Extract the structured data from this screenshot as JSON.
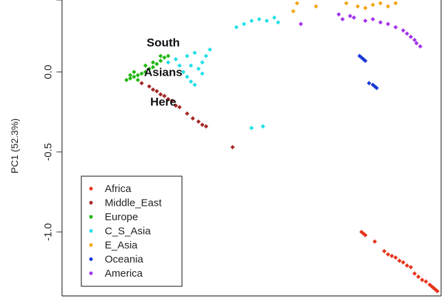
{
  "chart_data": {
    "type": "scatter",
    "title": "",
    "xlabel": "",
    "ylabel": "PC1 (52.3%)",
    "ylim": [
      -1.4,
      0.45
    ],
    "yticks": [
      {
        "value": 0.0,
        "label": "0.0"
      },
      {
        "value": -0.5,
        "label": "-0.5"
      },
      {
        "value": -1.0,
        "label": "-1.0"
      }
    ],
    "xlim": [
      0,
      1
    ],
    "annotations": [
      {
        "text": "South",
        "x": 0.267,
        "y": 0.16
      },
      {
        "text": "Asians",
        "x": 0.267,
        "y": -0.025
      },
      {
        "text": "Here",
        "x": 0.267,
        "y": -0.21
      }
    ],
    "legend_position": "bottom-left",
    "series": [
      {
        "name": "Africa",
        "color": "#e8341c",
        "points": [
          [
            0.79,
            -1.0
          ],
          [
            0.795,
            -1.01
          ],
          [
            0.8,
            -1.02
          ],
          [
            0.825,
            -1.06
          ],
          [
            0.85,
            -1.12
          ],
          [
            0.86,
            -1.14
          ],
          [
            0.87,
            -1.15
          ],
          [
            0.88,
            -1.16
          ],
          [
            0.89,
            -1.18
          ],
          [
            0.9,
            -1.19
          ],
          [
            0.91,
            -1.21
          ],
          [
            0.92,
            -1.22
          ],
          [
            0.93,
            -1.26
          ],
          [
            0.94,
            -1.28
          ],
          [
            0.95,
            -1.3
          ],
          [
            0.96,
            -1.31
          ],
          [
            0.97,
            -1.33
          ],
          [
            0.975,
            -1.34
          ],
          [
            0.98,
            -1.35
          ],
          [
            0.985,
            -1.36
          ],
          [
            0.99,
            -1.37
          ]
        ]
      },
      {
        "name": "Middle_East",
        "color": "#a52a2a",
        "points": [
          [
            0.21,
            -0.07
          ],
          [
            0.23,
            -0.09
          ],
          [
            0.25,
            -0.12
          ],
          [
            0.27,
            -0.15
          ],
          [
            0.29,
            -0.18
          ],
          [
            0.31,
            -0.22
          ],
          [
            0.33,
            -0.26
          ],
          [
            0.345,
            -0.29
          ],
          [
            0.36,
            -0.31
          ],
          [
            0.37,
            -0.33
          ],
          [
            0.38,
            -0.34
          ],
          [
            0.24,
            -0.11
          ],
          [
            0.26,
            -0.14
          ],
          [
            0.28,
            -0.17
          ],
          [
            0.3,
            -0.21
          ],
          [
            0.45,
            -0.47
          ]
        ]
      },
      {
        "name": "Europe",
        "color": "#22b814",
        "points": [
          [
            0.17,
            -0.05
          ],
          [
            0.18,
            -0.04
          ],
          [
            0.19,
            -0.03
          ],
          [
            0.2,
            -0.02
          ],
          [
            0.21,
            -0.01
          ],
          [
            0.22,
            0.0
          ],
          [
            0.23,
            0.02
          ],
          [
            0.24,
            0.03
          ],
          [
            0.25,
            0.05
          ],
          [
            0.26,
            0.07
          ],
          [
            0.27,
            0.09
          ],
          [
            0.18,
            -0.02
          ],
          [
            0.2,
            -0.05
          ],
          [
            0.22,
            0.04
          ],
          [
            0.24,
            0.06
          ],
          [
            0.26,
            0.1
          ],
          [
            0.28,
            0.1
          ],
          [
            0.19,
            0.0
          ]
        ]
      },
      {
        "name": "C_S_Asia",
        "color": "#22e0e8",
        "points": [
          [
            0.28,
            0.06
          ],
          [
            0.3,
            0.08
          ],
          [
            0.31,
            0.04
          ],
          [
            0.32,
            0.0
          ],
          [
            0.33,
            -0.03
          ],
          [
            0.34,
            -0.06
          ],
          [
            0.35,
            -0.08
          ],
          [
            0.36,
            0.02
          ],
          [
            0.37,
            0.06
          ],
          [
            0.38,
            0.1
          ],
          [
            0.39,
            0.14
          ],
          [
            0.33,
            0.1
          ],
          [
            0.35,
            0.12
          ],
          [
            0.37,
            -0.01
          ],
          [
            0.34,
            0.04
          ],
          [
            0.46,
            0.28
          ],
          [
            0.48,
            0.3
          ],
          [
            0.5,
            0.32
          ],
          [
            0.52,
            0.33
          ],
          [
            0.54,
            0.32
          ],
          [
            0.56,
            0.34
          ],
          [
            0.57,
            0.31
          ],
          [
            0.5,
            -0.35
          ],
          [
            0.53,
            -0.34
          ]
        ]
      },
      {
        "name": "E_Asia",
        "color": "#f5a511",
        "points": [
          [
            0.61,
            0.38
          ],
          [
            0.62,
            0.43
          ],
          [
            0.67,
            0.41
          ],
          [
            0.75,
            0.43
          ],
          [
            0.78,
            0.41
          ],
          [
            0.8,
            0.4
          ],
          [
            0.82,
            0.42
          ],
          [
            0.84,
            0.43
          ],
          [
            0.86,
            0.41
          ],
          [
            0.88,
            0.43
          ]
        ]
      },
      {
        "name": "Oceania",
        "color": "#1a3ad6",
        "points": [
          [
            0.785,
            0.1
          ],
          [
            0.79,
            0.09
          ],
          [
            0.795,
            0.08
          ],
          [
            0.8,
            0.07
          ],
          [
            0.81,
            -0.07
          ],
          [
            0.82,
            -0.08
          ],
          [
            0.825,
            -0.09
          ],
          [
            0.83,
            -0.1
          ]
        ]
      },
      {
        "name": "America",
        "color": "#a335ee",
        "points": [
          [
            0.63,
            0.3
          ],
          [
            0.73,
            0.36
          ],
          [
            0.74,
            0.33
          ],
          [
            0.76,
            0.35
          ],
          [
            0.77,
            0.34
          ],
          [
            0.8,
            0.32
          ],
          [
            0.82,
            0.33
          ],
          [
            0.84,
            0.31
          ],
          [
            0.86,
            0.3
          ],
          [
            0.88,
            0.28
          ],
          [
            0.9,
            0.26
          ],
          [
            0.91,
            0.24
          ],
          [
            0.92,
            0.22
          ],
          [
            0.93,
            0.2
          ],
          [
            0.935,
            0.18
          ],
          [
            0.945,
            0.16
          ]
        ]
      }
    ]
  }
}
